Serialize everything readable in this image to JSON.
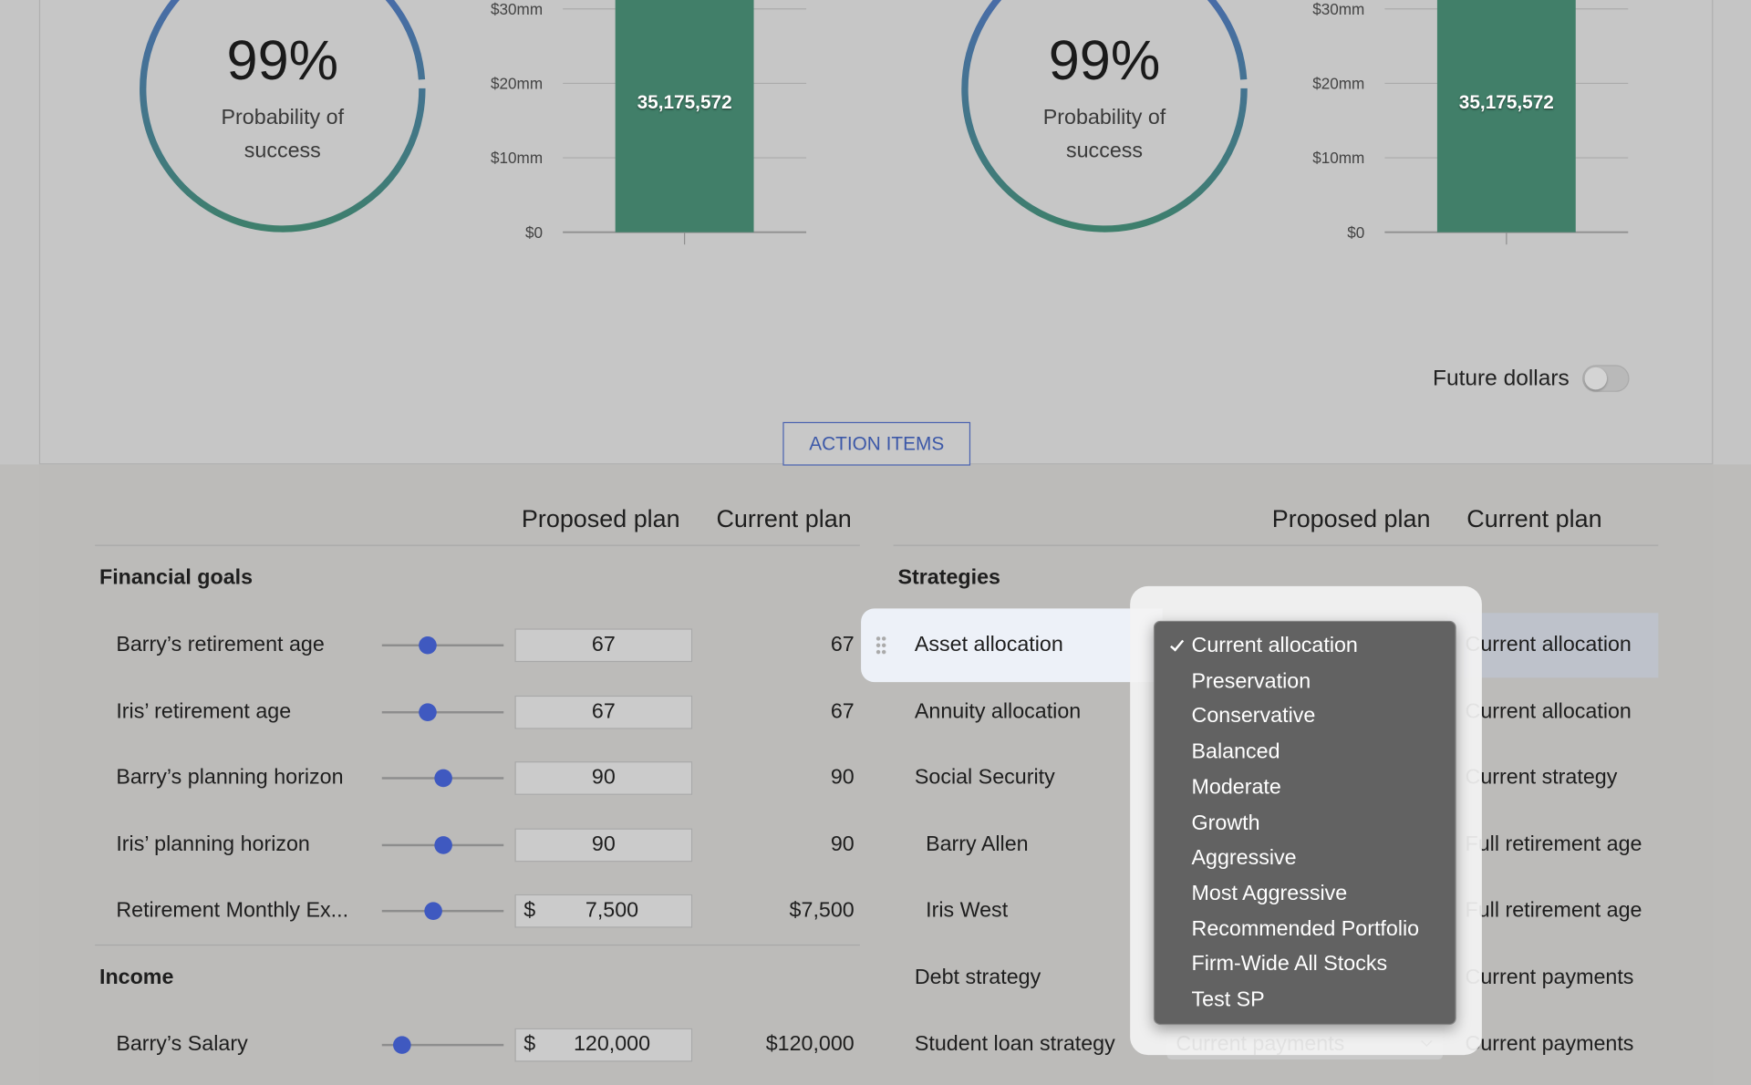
{
  "panels": [
    {
      "gauge": {
        "value": 99,
        "label": "99%",
        "caption": "Probability of success"
      },
      "chart": {
        "type": "bar",
        "ylim": [
          0,
          30000000
        ],
        "yticks": [
          {
            "value": 0,
            "label": "$0"
          },
          {
            "value": 10000000,
            "label": "$10mm"
          },
          {
            "value": 20000000,
            "label": "$20mm"
          },
          {
            "value": 30000000,
            "label": "$30mm"
          }
        ],
        "values": [
          35175572
        ],
        "value_labels": [
          "35,175,572"
        ],
        "color": "#417f69"
      }
    },
    {
      "gauge": {
        "value": 99,
        "label": "99%",
        "caption": "Probability of success"
      },
      "chart": {
        "type": "bar",
        "ylim": [
          0,
          30000000
        ],
        "yticks": [
          {
            "value": 0,
            "label": "$0"
          },
          {
            "value": 10000000,
            "label": "$10mm"
          },
          {
            "value": 20000000,
            "label": "$20mm"
          },
          {
            "value": 30000000,
            "label": "$30mm"
          }
        ],
        "values": [
          35175572
        ],
        "value_labels": [
          "35,175,572"
        ],
        "color": "#417f69"
      }
    }
  ],
  "future_dollars": "Future dollars",
  "action_button": "ACTION ITEMS",
  "goals_table": {
    "headers": [
      "Proposed plan",
      "Current plan"
    ],
    "sections": [
      {
        "title": "Financial goals",
        "rows": [
          {
            "label": "Barry’s retirement age",
            "proposed": "67",
            "current": "67"
          },
          {
            "label": "Iris’ retirement age",
            "proposed": "67",
            "current": "67"
          },
          {
            "label": "Barry’s planning horizon",
            "proposed": "90",
            "current": "90"
          },
          {
            "label": "Iris’ planning horizon",
            "proposed": "90",
            "current": "90"
          },
          {
            "label": "Retirement Monthly Ex...",
            "prefix": "$",
            "proposed": "7,500",
            "current": "$7,500"
          }
        ]
      },
      {
        "title": "Income",
        "rows": [
          {
            "label": "Barry’s Salary",
            "prefix": "$",
            "proposed": "120,000",
            "current": "$120,000"
          }
        ]
      }
    ]
  },
  "strategies_table": {
    "headers": [
      "Proposed plan",
      "Current plan"
    ],
    "title": "Strategies",
    "rows": [
      {
        "label": "Asset allocation",
        "current": "Current allocation"
      },
      {
        "label": "Annuity allocation",
        "current": "Current allocation"
      },
      {
        "label": "Social Security",
        "current": "Current strategy"
      },
      {
        "label": "Barry Allen",
        "current": "Full retirement age"
      },
      {
        "label": "Iris West",
        "current": "Full retirement age"
      },
      {
        "label": "Debt strategy",
        "current": "Current payments"
      },
      {
        "label": "Student loan strategy",
        "current": "Current payments"
      }
    ]
  },
  "dropdown": {
    "options": [
      "Current allocation",
      "Preservation",
      "Conservative",
      "Balanced",
      "Moderate",
      "Growth",
      "Aggressive",
      "Most Aggressive",
      "Recommended Portfolio",
      "Firm-Wide All Stocks",
      "Test SP"
    ]
  },
  "student_loan_select": "Current payments"
}
